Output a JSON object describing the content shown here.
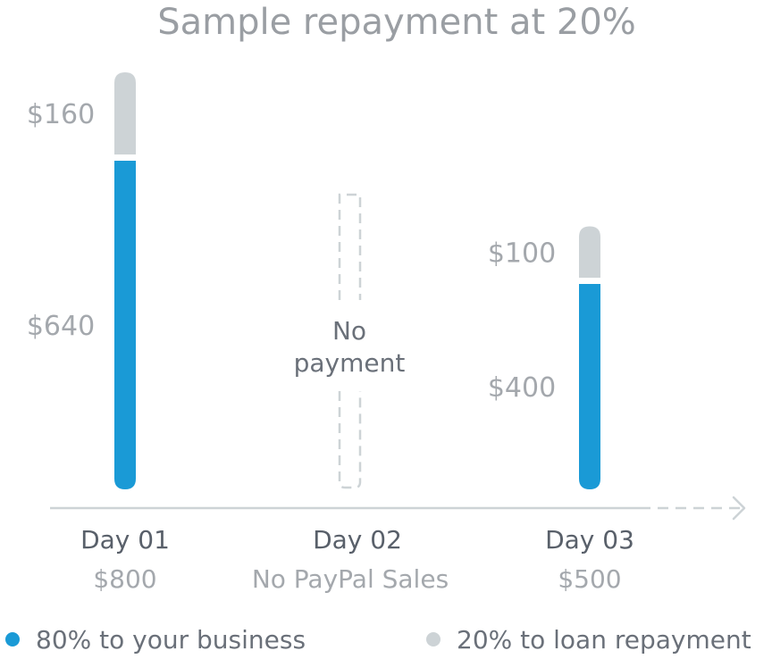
{
  "colors": {
    "business": "#1a9ad6",
    "repayment": "#cdd3d6",
    "axis": "#cdd3d6",
    "text": "#6a7079"
  },
  "chart_data": {
    "type": "bar",
    "stacked": true,
    "title": "Sample repayment at 20%",
    "categories": [
      "Day 01",
      "Day 02",
      "Day 03"
    ],
    "category_sublabels": [
      "$800",
      "No PayPal Sales",
      "$500"
    ],
    "series": [
      {
        "name": "80% to your business",
        "values": [
          640,
          0,
          400
        ],
        "value_labels": [
          "$640",
          "",
          "$400"
        ]
      },
      {
        "name": "20% to loan repayment",
        "values": [
          160,
          0,
          100
        ],
        "value_labels": [
          "$160",
          "",
          "$100"
        ]
      }
    ],
    "annotations": [
      {
        "category": "Day 02",
        "text_line1": "No",
        "text_line2": "payment"
      }
    ],
    "ylim": [
      0,
      800
    ],
    "grid": false,
    "legend_position": "bottom"
  }
}
